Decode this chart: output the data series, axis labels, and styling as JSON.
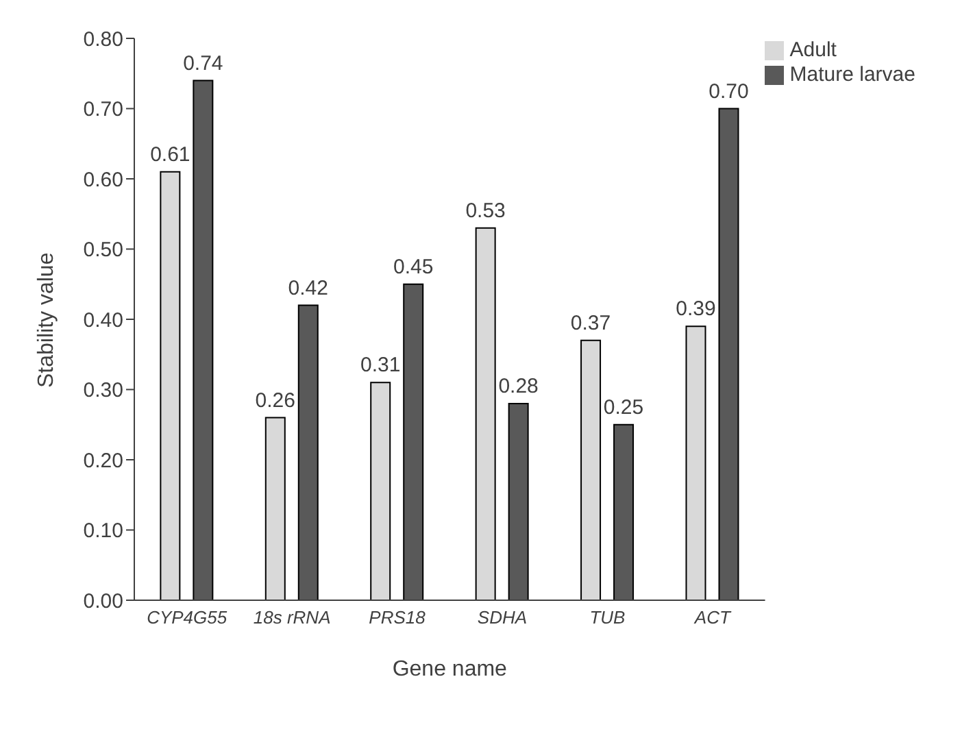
{
  "chart_data": {
    "type": "bar",
    "xlabel": "Gene name",
    "ylabel": "Stability value",
    "categories": [
      "CYP4G55",
      "18s rRNA",
      "PRS18",
      "SDHA",
      "TUB",
      "ACT"
    ],
    "series": [
      {
        "name": "Adult",
        "color": "#d9d9d9",
        "values": [
          0.61,
          0.26,
          0.31,
          0.53,
          0.37,
          0.39
        ],
        "value_labels": [
          "0.61",
          "0.26",
          "0.31",
          "0.53",
          "0.37",
          "0.39"
        ]
      },
      {
        "name": "Mature larvae",
        "color": "#595959",
        "values": [
          0.74,
          0.42,
          0.45,
          0.28,
          0.25,
          0.7
        ],
        "value_labels": [
          "0.74",
          "0.42",
          "0.45",
          "0.28",
          "0.25",
          "0.70"
        ]
      }
    ],
    "ylim": [
      0,
      0.8
    ],
    "yticks": [
      {
        "value": 0,
        "label": "0.00"
      },
      {
        "value": 0.1,
        "label": "0.10"
      },
      {
        "value": 0.2,
        "label": "0.20"
      },
      {
        "value": 0.3,
        "label": "0.30"
      },
      {
        "value": 0.4,
        "label": "0.40"
      },
      {
        "value": 0.5,
        "label": "0.50"
      },
      {
        "value": 0.6,
        "label": "0.60"
      },
      {
        "value": 0.7,
        "label": "0.70"
      },
      {
        "value": 0.8,
        "label": "0.80"
      }
    ],
    "legend": "top right",
    "grid": false
  }
}
